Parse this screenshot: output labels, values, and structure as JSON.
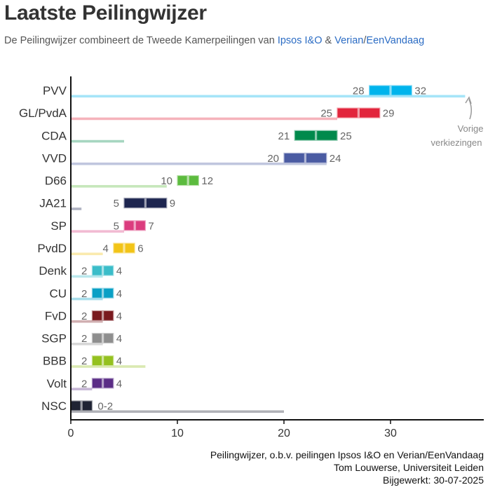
{
  "header": {
    "title": "Laatste Peilingwijzer",
    "subtitle_pre": "De Peilingwijzer combineert de Tweede Kamerpeilingen van ",
    "subtitle_src1": "Ipsos I&O",
    "subtitle_amp": " & ",
    "subtitle_src2a": "Verian",
    "subtitle_slash": "/",
    "subtitle_src2b": "EenVandaag"
  },
  "chart_data": {
    "type": "bar",
    "title": "Laatste Peilingwijzer",
    "xlabel": "",
    "ylabel": "",
    "xlim": [
      0,
      38
    ],
    "x_ticks": [
      0,
      10,
      20,
      30
    ],
    "annotation": [
      "Vorige",
      "verkiezingen"
    ],
    "parties": [
      {
        "name": "PVV",
        "low": 28,
        "high": 32,
        "range_label": null,
        "previous": 37,
        "color": "#00b4ec"
      },
      {
        "name": "GL/PvdA",
        "low": 25,
        "high": 29,
        "range_label": null,
        "previous": 25,
        "color": "#e2253c"
      },
      {
        "name": "CDA",
        "low": 21,
        "high": 25,
        "range_label": null,
        "previous": 5,
        "color": "#008a4c"
      },
      {
        "name": "VVD",
        "low": 20,
        "high": 24,
        "range_label": null,
        "previous": 24,
        "color": "#4a5ba2"
      },
      {
        "name": "D66",
        "low": 10,
        "high": 12,
        "range_label": null,
        "previous": 9,
        "color": "#5cbb3e"
      },
      {
        "name": "JA21",
        "low": 5,
        "high": 9,
        "range_label": null,
        "previous": 1,
        "color": "#1e2650"
      },
      {
        "name": "SP",
        "low": 5,
        "high": 7,
        "range_label": null,
        "previous": 5,
        "color": "#db3c7e"
      },
      {
        "name": "PvdD",
        "low": 4,
        "high": 6,
        "range_label": null,
        "previous": 3,
        "color": "#f2c417"
      },
      {
        "name": "Denk",
        "low": 2,
        "high": 4,
        "range_label": null,
        "previous": 3,
        "color": "#3bbdc9"
      },
      {
        "name": "CU",
        "low": 2,
        "high": 4,
        "range_label": null,
        "previous": 3,
        "color": "#0aa0c5"
      },
      {
        "name": "FvD",
        "low": 2,
        "high": 4,
        "range_label": null,
        "previous": 3,
        "color": "#7a1a1f"
      },
      {
        "name": "SGP",
        "low": 2,
        "high": 4,
        "range_label": null,
        "previous": 3,
        "color": "#8e8e8e"
      },
      {
        "name": "BBB",
        "low": 2,
        "high": 4,
        "range_label": null,
        "previous": 7,
        "color": "#94c11f"
      },
      {
        "name": "Volt",
        "low": 2,
        "high": 4,
        "range_label": null,
        "previous": 2,
        "color": "#5b2d86"
      },
      {
        "name": "NSC",
        "low": 0,
        "high": 2,
        "range_label": "0-2",
        "previous": 20,
        "color": "#1f2333"
      }
    ]
  },
  "footer": {
    "line1": "Peilingwijzer, o.b.v. peilingen Ipsos I&O en Verian/EenVandaag",
    "line2": "Tom Louwerse, Universiteit Leiden",
    "line3": "Bijgewerkt: 30-07-2025"
  }
}
